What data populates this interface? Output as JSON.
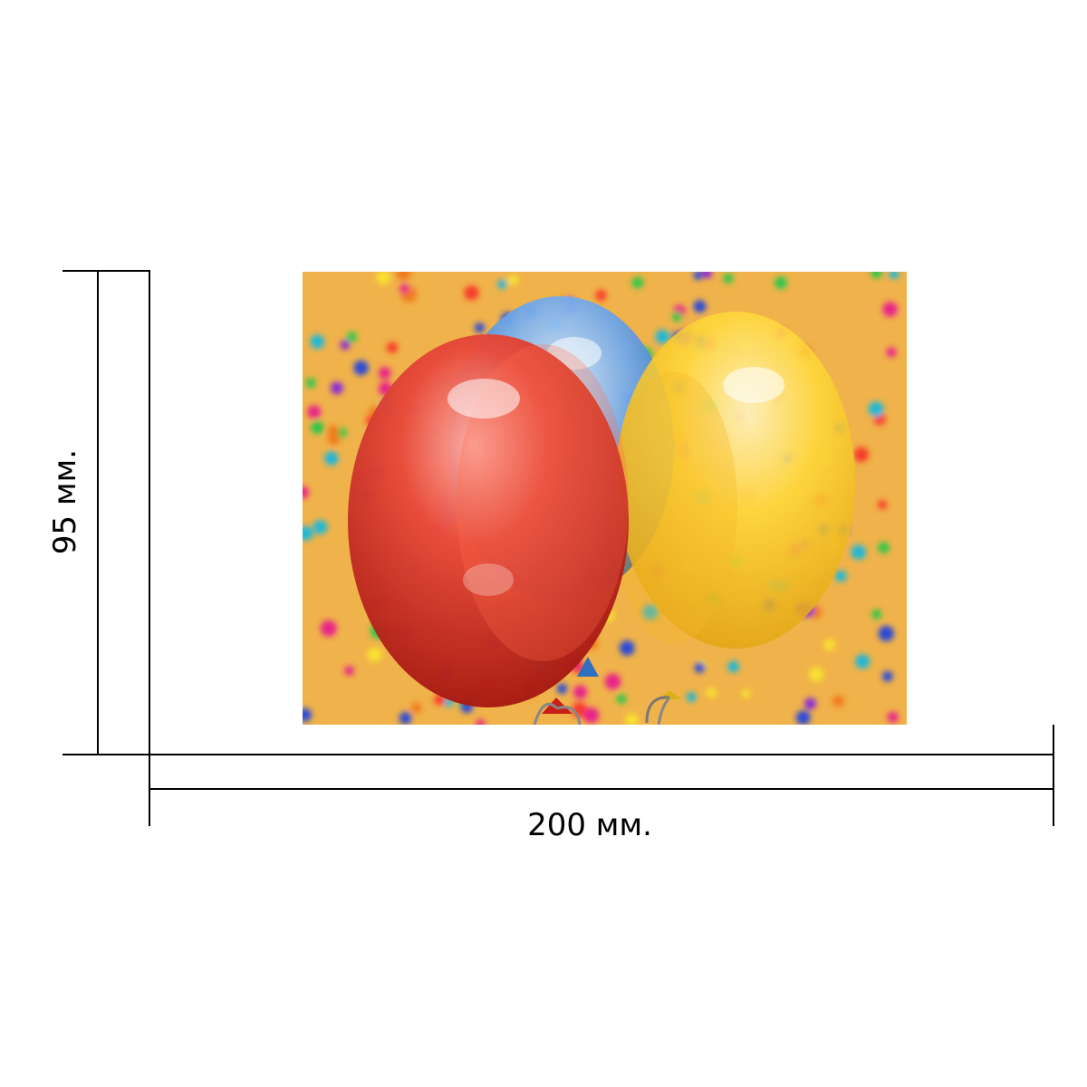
{
  "dimensions": {
    "height_label": "95 мм.",
    "width_label": "200 мм."
  },
  "illustration": {
    "subject": "balloons-and-confetti",
    "colors": {
      "background": "#f0b24a",
      "balloon_red": "#d62a1e",
      "balloon_blue": "#3c78c8",
      "balloon_yellow": "#f8c820"
    }
  }
}
